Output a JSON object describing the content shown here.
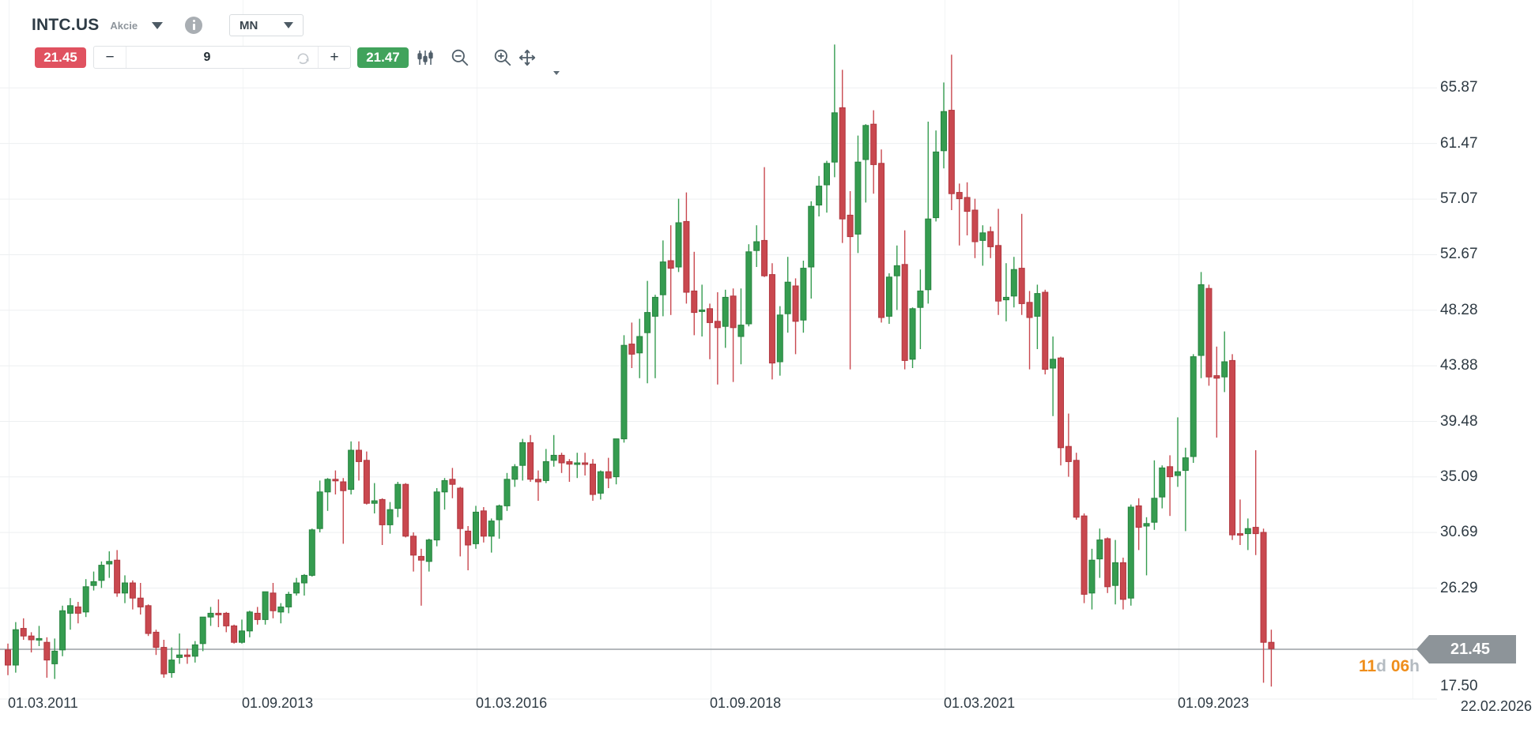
{
  "header": {
    "symbol": "INTC.US",
    "instrument_type": "Akcie",
    "timeframe": "MN"
  },
  "toolbar": {
    "bid": "21.45",
    "ask": "21.47",
    "minus_label": "−",
    "plus_label": "+",
    "period_value": "9"
  },
  "price_scale": {
    "labels": [
      "65.87",
      "61.47",
      "57.07",
      "52.67",
      "48.28",
      "43.88",
      "39.48",
      "35.09",
      "30.69",
      "26.29",
      "17.50"
    ],
    "current_price": "21.45"
  },
  "time_scale": {
    "labels": [
      "01.03.2011",
      "01.09.2013",
      "01.03.2016",
      "01.09.2018",
      "01.03.2021",
      "01.09.2023"
    ],
    "right_edge_label": "22.02.2026"
  },
  "countdown": {
    "days": "11",
    "days_unit": "d ",
    "hours": "06",
    "hours_unit": "h"
  },
  "colors": {
    "up": "#359c50",
    "up_border": "#27833f",
    "down": "#c9484f",
    "down_border": "#b0363e",
    "grid_h": "#edeff1",
    "grid_v": "#f2f4f5",
    "current_line": "#9ba1a6",
    "tag_bg": "#8d9499",
    "bid_badge": "#e05260",
    "ask_badge": "#41a35c",
    "icon": "#515f6a",
    "countdown_orange": "#ef8e1b",
    "countdown_gray": "#b4bbc1"
  },
  "chart_data": {
    "type": "candlestick",
    "symbol": "INTC.US",
    "interval": "monthly",
    "start_month": "03.2011",
    "last_price": 21.45,
    "ylim": [
      17.5,
      69.5
    ],
    "grid": true,
    "candles": [
      [
        21.4,
        21.9,
        19.4,
        20.2
      ],
      [
        20.2,
        23.6,
        19.6,
        23.0
      ],
      [
        23.1,
        23.9,
        22.2,
        22.5
      ],
      [
        22.5,
        22.8,
        21.2,
        22.2
      ],
      [
        22.3,
        23.3,
        21.7,
        22.3
      ],
      [
        22.0,
        22.4,
        19.2,
        20.6
      ],
      [
        20.3,
        22.3,
        19.1,
        21.3
      ],
      [
        21.4,
        24.9,
        20.9,
        24.5
      ],
      [
        24.3,
        25.5,
        23.0,
        24.9
      ],
      [
        24.8,
        25.2,
        23.5,
        24.3
      ],
      [
        24.4,
        27.0,
        24.0,
        26.4
      ],
      [
        26.5,
        27.6,
        26.1,
        26.8
      ],
      [
        26.9,
        28.4,
        26.3,
        28.1
      ],
      [
        28.2,
        29.2,
        27.1,
        28.4
      ],
      [
        28.5,
        29.3,
        25.6,
        25.9
      ],
      [
        25.9,
        27.3,
        25.1,
        26.7
      ],
      [
        26.7,
        26.9,
        24.6,
        25.5
      ],
      [
        25.5,
        26.7,
        24.2,
        24.8
      ],
      [
        24.9,
        25.0,
        22.5,
        22.7
      ],
      [
        22.8,
        23.0,
        21.0,
        21.6
      ],
      [
        21.6,
        22.2,
        19.2,
        19.5
      ],
      [
        19.6,
        21.6,
        19.2,
        20.6
      ],
      [
        20.8,
        22.7,
        20.3,
        21.0
      ],
      [
        21.0,
        21.5,
        20.3,
        20.9
      ],
      [
        20.9,
        22.1,
        20.4,
        21.8
      ],
      [
        21.9,
        24.0,
        21.3,
        24.0
      ],
      [
        24.0,
        24.8,
        23.3,
        24.3
      ],
      [
        24.3,
        25.4,
        23.2,
        24.2
      ],
      [
        24.3,
        24.4,
        22.8,
        23.3
      ],
      [
        23.3,
        23.4,
        21.9,
        22.0
      ],
      [
        22.0,
        23.8,
        21.9,
        22.9
      ],
      [
        22.9,
        24.5,
        22.4,
        24.4
      ],
      [
        24.3,
        24.8,
        23.4,
        23.8
      ],
      [
        23.8,
        26.0,
        23.4,
        26.0
      ],
      [
        25.9,
        26.7,
        23.9,
        24.5
      ],
      [
        24.4,
        25.1,
        23.5,
        24.8
      ],
      [
        24.8,
        26.0,
        24.3,
        25.8
      ],
      [
        25.9,
        27.1,
        25.7,
        26.7
      ],
      [
        26.7,
        27.4,
        25.7,
        27.3
      ],
      [
        27.3,
        31.0,
        27.2,
        30.9
      ],
      [
        31.0,
        34.8,
        30.7,
        33.9
      ],
      [
        33.9,
        35.0,
        32.4,
        34.9
      ],
      [
        34.9,
        35.6,
        33.7,
        34.8
      ],
      [
        34.7,
        35.0,
        29.8,
        34.0
      ],
      [
        34.1,
        37.9,
        33.7,
        37.2
      ],
      [
        37.2,
        37.9,
        34.8,
        36.3
      ],
      [
        36.4,
        37.1,
        32.9,
        33.0
      ],
      [
        33.0,
        34.6,
        32.2,
        33.2
      ],
      [
        33.3,
        33.4,
        29.7,
        31.3
      ],
      [
        31.3,
        33.1,
        30.6,
        32.5
      ],
      [
        32.6,
        34.7,
        31.9,
        34.5
      ],
      [
        34.5,
        34.6,
        30.3,
        30.4
      ],
      [
        30.4,
        30.7,
        27.6,
        28.9
      ],
      [
        28.8,
        29.4,
        24.9,
        28.5
      ],
      [
        28.4,
        30.2,
        27.6,
        30.1
      ],
      [
        30.1,
        34.2,
        29.6,
        33.9
      ],
      [
        33.9,
        35.0,
        32.5,
        34.8
      ],
      [
        34.9,
        35.8,
        33.4,
        34.5
      ],
      [
        34.2,
        34.3,
        28.8,
        31.0
      ],
      [
        30.8,
        31.2,
        27.7,
        29.7
      ],
      [
        29.8,
        32.8,
        29.4,
        32.3
      ],
      [
        32.4,
        32.7,
        29.9,
        30.4
      ],
      [
        30.4,
        31.8,
        29.1,
        31.6
      ],
      [
        31.7,
        32.9,
        30.2,
        32.8
      ],
      [
        32.8,
        35.4,
        32.4,
        34.9
      ],
      [
        34.9,
        36.1,
        34.3,
        35.9
      ],
      [
        36.0,
        38.1,
        34.8,
        37.8
      ],
      [
        37.8,
        38.4,
        34.7,
        34.9
      ],
      [
        34.9,
        35.6,
        33.2,
        34.7
      ],
      [
        34.8,
        37.3,
        34.6,
        36.3
      ],
      [
        36.4,
        38.4,
        35.9,
        36.8
      ],
      [
        36.8,
        37.0,
        35.4,
        36.2
      ],
      [
        36.3,
        36.5,
        34.7,
        36.1
      ],
      [
        36.1,
        37.0,
        35.0,
        36.2
      ],
      [
        36.2,
        37.0,
        35.2,
        36.1
      ],
      [
        36.1,
        36.5,
        33.2,
        33.7
      ],
      [
        33.8,
        35.6,
        33.3,
        35.5
      ],
      [
        35.5,
        36.6,
        34.2,
        35.0
      ],
      [
        35.1,
        38.1,
        34.5,
        38.1
      ],
      [
        38.1,
        46.3,
        37.8,
        45.5
      ],
      [
        45.6,
        47.3,
        43.7,
        44.8
      ],
      [
        44.9,
        47.6,
        42.9,
        46.2
      ],
      [
        46.5,
        50.6,
        42.5,
        48.1
      ],
      [
        47.8,
        49.5,
        42.9,
        49.3
      ],
      [
        49.5,
        53.8,
        47.8,
        52.1
      ],
      [
        52.2,
        55.0,
        47.9,
        51.6
      ],
      [
        51.7,
        57.1,
        51.3,
        55.2
      ],
      [
        55.3,
        57.6,
        48.8,
        49.7
      ],
      [
        49.8,
        52.9,
        46.3,
        48.1
      ],
      [
        48.2,
        50.3,
        46.2,
        48.3
      ],
      [
        48.4,
        48.8,
        44.4,
        47.3
      ],
      [
        47.4,
        49.7,
        42.4,
        46.9
      ],
      [
        47.0,
        49.9,
        45.3,
        49.3
      ],
      [
        49.4,
        50.0,
        42.6,
        46.9
      ],
      [
        46.2,
        50.0,
        44.0,
        47.1
      ],
      [
        47.2,
        53.5,
        47.0,
        52.9
      ],
      [
        53.0,
        55.0,
        51.7,
        53.7
      ],
      [
        53.8,
        59.6,
        50.9,
        51.0
      ],
      [
        51.1,
        52.0,
        42.8,
        44.1
      ],
      [
        44.2,
        48.6,
        43.1,
        47.9
      ],
      [
        48.0,
        52.5,
        46.5,
        50.5
      ],
      [
        50.2,
        50.8,
        44.8,
        47.4
      ],
      [
        47.5,
        52.2,
        46.5,
        51.6
      ],
      [
        51.7,
        56.9,
        49.2,
        56.5
      ],
      [
        56.6,
        58.9,
        55.7,
        58.1
      ],
      [
        58.2,
        60.1,
        56.0,
        59.9
      ],
      [
        60.0,
        69.3,
        58.8,
        63.9
      ],
      [
        64.3,
        67.3,
        53.6,
        55.5
      ],
      [
        55.8,
        57.7,
        43.6,
        54.1
      ],
      [
        54.3,
        62.1,
        52.8,
        60.0
      ],
      [
        60.2,
        63.0,
        56.8,
        62.9
      ],
      [
        63.0,
        64.1,
        57.5,
        59.8
      ],
      [
        59.9,
        61.0,
        47.3,
        47.7
      ],
      [
        47.8,
        51.2,
        47.2,
        50.9
      ],
      [
        51.0,
        53.4,
        48.3,
        51.8
      ],
      [
        51.9,
        54.6,
        43.6,
        44.3
      ],
      [
        44.4,
        48.5,
        43.7,
        48.4
      ],
      [
        48.5,
        51.5,
        45.2,
        49.8
      ],
      [
        49.9,
        63.2,
        48.8,
        55.5
      ],
      [
        55.6,
        62.5,
        55.3,
        60.8
      ],
      [
        60.9,
        66.3,
        59.5,
        64.0
      ],
      [
        64.1,
        68.5,
        56.2,
        57.5
      ],
      [
        57.6,
        58.3,
        53.4,
        57.1
      ],
      [
        57.2,
        58.4,
        54.2,
        56.1
      ],
      [
        56.2,
        57.1,
        52.4,
        53.7
      ],
      [
        53.8,
        55.0,
        51.8,
        54.4
      ],
      [
        54.5,
        54.9,
        52.4,
        53.3
      ],
      [
        53.4,
        56.3,
        47.9,
        49.0
      ],
      [
        49.1,
        52.0,
        47.4,
        49.3
      ],
      [
        49.4,
        52.5,
        48.5,
        51.5
      ],
      [
        51.6,
        55.9,
        47.9,
        48.8
      ],
      [
        48.9,
        49.8,
        43.6,
        47.7
      ],
      [
        47.8,
        50.3,
        45.2,
        49.6
      ],
      [
        49.7,
        49.9,
        43.2,
        43.6
      ],
      [
        43.7,
        46.2,
        39.9,
        44.4
      ],
      [
        44.5,
        44.6,
        36.0,
        37.4
      ],
      [
        37.5,
        40.1,
        35.1,
        36.3
      ],
      [
        36.4,
        37.0,
        31.7,
        31.9
      ],
      [
        32.0,
        32.2,
        25.1,
        25.8
      ],
      [
        25.9,
        29.4,
        24.6,
        28.5
      ],
      [
        28.6,
        31.0,
        27.1,
        30.1
      ],
      [
        30.2,
        30.3,
        25.9,
        26.4
      ],
      [
        26.5,
        30.1,
        25.0,
        28.3
      ],
      [
        28.3,
        28.7,
        24.6,
        25.4
      ],
      [
        25.5,
        32.9,
        24.9,
        32.7
      ],
      [
        32.8,
        33.4,
        29.3,
        31.1
      ],
      [
        31.2,
        31.9,
        27.3,
        31.4
      ],
      [
        31.5,
        36.4,
        30.9,
        33.4
      ],
      [
        33.5,
        36.0,
        32.6,
        35.8
      ],
      [
        35.9,
        36.8,
        32.0,
        35.1
      ],
      [
        35.2,
        39.8,
        34.3,
        35.5
      ],
      [
        35.6,
        37.4,
        30.8,
        36.6
      ],
      [
        36.7,
        44.8,
        36.2,
        44.6
      ],
      [
        44.7,
        51.3,
        42.9,
        50.3
      ],
      [
        50.0,
        50.3,
        42.3,
        43.0
      ],
      [
        43.1,
        45.4,
        38.2,
        42.9
      ],
      [
        43.0,
        46.6,
        41.8,
        44.2
      ],
      [
        44.3,
        44.8,
        30.1,
        30.5
      ],
      [
        30.6,
        33.3,
        29.7,
        30.5
      ],
      [
        30.6,
        31.8,
        29.3,
        31.0
      ],
      [
        31.1,
        37.2,
        28.9,
        30.6
      ],
      [
        30.7,
        31.0,
        18.8,
        22.0
      ],
      [
        22.0,
        23.0,
        18.5,
        21.5
      ]
    ]
  }
}
